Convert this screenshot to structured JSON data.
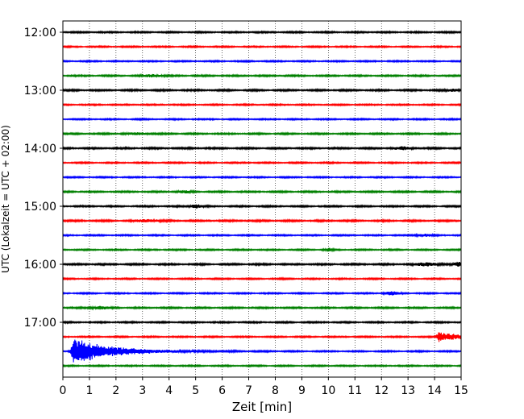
{
  "chart_data": {
    "type": "line",
    "title": "",
    "xlabel": "Zeit  [min]",
    "ylabel": "UTC (Lokalzeit = UTC + 02:00)",
    "xlim": [
      0,
      15
    ],
    "x_ticks": [
      "0",
      "1",
      "2",
      "3",
      "4",
      "5",
      "6",
      "7",
      "8",
      "9",
      "10",
      "11",
      "12",
      "13",
      "14",
      "15"
    ],
    "y_ticks": [
      "12:00",
      "13:00",
      "14:00",
      "15:00",
      "16:00",
      "17:00"
    ],
    "grid": "vertical dotted lines at each minute",
    "trace_interval_min": 15,
    "start_time": "12:00",
    "trace_colors": [
      "#000000",
      "#ff0000",
      "#0000ff",
      "#008000"
    ],
    "traces": [
      {
        "start": "12:00",
        "color": "#000000",
        "amplitude": 0.22,
        "events": []
      },
      {
        "start": "12:15",
        "color": "#ff0000",
        "amplitude": 0.2,
        "events": []
      },
      {
        "start": "12:30",
        "color": "#0000ff",
        "amplitude": 0.2,
        "events": []
      },
      {
        "start": "12:45",
        "color": "#008000",
        "amplitude": 0.22,
        "events": [
          {
            "t": 3.4,
            "amp": 0.3,
            "width": 0.5
          }
        ]
      },
      {
        "start": "13:00",
        "color": "#000000",
        "amplitude": 0.24,
        "events": [
          {
            "t": 14.7,
            "amp": 0.3,
            "width": 0.3
          }
        ]
      },
      {
        "start": "13:15",
        "color": "#ff0000",
        "amplitude": 0.2,
        "events": []
      },
      {
        "start": "13:30",
        "color": "#0000ff",
        "amplitude": 0.2,
        "events": []
      },
      {
        "start": "13:45",
        "color": "#008000",
        "amplitude": 0.22,
        "events": [
          {
            "t": 2.8,
            "amp": 0.25,
            "width": 0.6
          }
        ]
      },
      {
        "start": "14:00",
        "color": "#000000",
        "amplitude": 0.24,
        "events": [
          {
            "t": 12.8,
            "amp": 0.3,
            "width": 0.5
          }
        ]
      },
      {
        "start": "14:15",
        "color": "#ff0000",
        "amplitude": 0.2,
        "events": []
      },
      {
        "start": "14:30",
        "color": "#0000ff",
        "amplitude": 0.2,
        "events": []
      },
      {
        "start": "14:45",
        "color": "#008000",
        "amplitude": 0.22,
        "events": [
          {
            "t": 4.6,
            "amp": 0.25,
            "width": 0.4
          }
        ]
      },
      {
        "start": "15:00",
        "color": "#000000",
        "amplitude": 0.22,
        "events": [
          {
            "t": 5.0,
            "amp": 0.45,
            "width": 0.3
          }
        ]
      },
      {
        "start": "15:15",
        "color": "#ff0000",
        "amplitude": 0.24,
        "events": [
          {
            "t": 3.2,
            "amp": 0.3,
            "width": 0.6
          }
        ]
      },
      {
        "start": "15:30",
        "color": "#0000ff",
        "amplitude": 0.2,
        "events": [
          {
            "t": 13.6,
            "amp": 0.3,
            "width": 0.4
          }
        ]
      },
      {
        "start": "15:45",
        "color": "#008000",
        "amplitude": 0.2,
        "events": [
          {
            "t": 10.0,
            "amp": 0.4,
            "width": 0.2
          }
        ]
      },
      {
        "start": "16:00",
        "color": "#000000",
        "amplitude": 0.24,
        "events": [
          {
            "t": 14.9,
            "amp": 0.55,
            "width": 0.25
          },
          {
            "t": 13.7,
            "amp": 0.4,
            "width": 0.5
          }
        ]
      },
      {
        "start": "16:15",
        "color": "#ff0000",
        "amplitude": 0.2,
        "events": []
      },
      {
        "start": "16:30",
        "color": "#0000ff",
        "amplitude": 0.2,
        "events": [
          {
            "t": 12.4,
            "amp": 0.4,
            "width": 0.4
          }
        ]
      },
      {
        "start": "16:45",
        "color": "#008000",
        "amplitude": 0.22,
        "events": [
          {
            "t": 1.4,
            "amp": 0.3,
            "width": 0.5
          }
        ]
      },
      {
        "start": "17:00",
        "color": "#000000",
        "amplitude": 0.22,
        "events": []
      },
      {
        "start": "17:15",
        "color": "#ff0000",
        "amplitude": 0.2,
        "events": [
          {
            "t": 14.2,
            "amp": 1.4,
            "width": 0.7
          }
        ]
      },
      {
        "start": "17:30",
        "color": "#0000ff",
        "amplitude": 0.2,
        "events": [
          {
            "t": 0.45,
            "amp": 3.8,
            "width": 1.4
          }
        ]
      },
      {
        "start": "17:45",
        "color": "#008000",
        "amplitude": 0.2,
        "events": []
      }
    ]
  }
}
